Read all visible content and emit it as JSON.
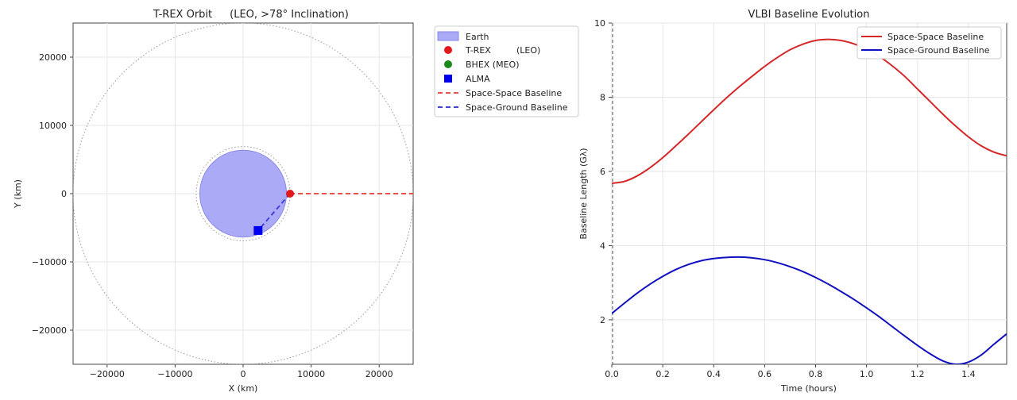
{
  "chart_data": [
    {
      "type": "scatter",
      "title": "T-REX Orbit",
      "subtitle": "(LEO, >78° Inclination)",
      "xlabel": "X (km)",
      "ylabel": "Y (km)",
      "xlim": [
        -25000,
        25000
      ],
      "ylim": [
        -25000,
        25000
      ],
      "xticks": [
        -20000,
        -10000,
        0,
        10000,
        20000
      ],
      "yticks": [
        -20000,
        -10000,
        0,
        10000,
        20000
      ],
      "xtick_labels": [
        "−20000",
        "−10000",
        "0",
        "10000",
        "20000"
      ],
      "ytick_labels": [
        "−20000",
        "−10000",
        "0",
        "10000",
        "20000"
      ],
      "grid": true,
      "earth": {
        "center": [
          0,
          0
        ],
        "radius_km": 6371
      },
      "orbits": [
        {
          "name": "LEO orbit",
          "radius_km": 6900
        },
        {
          "name": "MEO orbit",
          "radius_km": 25000
        }
      ],
      "points": [
        {
          "name": "T-REX",
          "x": 6900,
          "y": 0
        },
        {
          "name": "ALMA",
          "x": 2200,
          "y": -5400
        }
      ],
      "baselines": [
        {
          "name": "Space-Space Baseline",
          "from": [
            6900,
            0
          ],
          "to": [
            25000,
            0
          ]
        },
        {
          "name": "Space-Ground Baseline",
          "from": [
            6900,
            0
          ],
          "to": [
            2200,
            -5400
          ]
        }
      ],
      "legend": {
        "position": "outside-right",
        "entries": [
          {
            "label": "Earth",
            "marker": "patch",
            "color": "#aaaaf7"
          },
          {
            "label": "T-REX",
            "annotation": "(LEO)",
            "marker": "circle",
            "color": "#e31a1c"
          },
          {
            "label": "BHEX (MEO)",
            "marker": "circle",
            "color": "#1a8a1a"
          },
          {
            "label": "ALMA",
            "marker": "square",
            "color": "#0000ee"
          },
          {
            "label": "Space-Space Baseline",
            "marker": "dashed-line",
            "color": "#e8504a"
          },
          {
            "label": "Space-Ground Baseline",
            "marker": "dashed-line",
            "color": "#4242d6"
          }
        ]
      }
    },
    {
      "type": "line",
      "title": "VLBI Baseline Evolution",
      "xlabel": "Time (hours)",
      "ylabel": "Baseline Length (Gλ)",
      "xlim": [
        0,
        1.55
      ],
      "ylim": [
        0.8,
        10
      ],
      "xticks": [
        0.0,
        0.2,
        0.4,
        0.6,
        0.8,
        1.0,
        1.2,
        1.4
      ],
      "yticks": [
        2,
        4,
        6,
        8,
        10
      ],
      "xtick_labels": [
        "0.0",
        "0.2",
        "0.4",
        "0.6",
        "0.8",
        "1.0",
        "1.2",
        "1.4"
      ],
      "ytick_labels": [
        "2",
        "4",
        "6",
        "8",
        "10"
      ],
      "grid": true,
      "legend": {
        "position": "top-right"
      },
      "series": [
        {
          "name": "Space-Space Baseline",
          "color": "#d62728",
          "x": [
            0,
            0.05,
            0.1,
            0.15,
            0.2,
            0.25,
            0.3,
            0.35,
            0.4,
            0.45,
            0.5,
            0.55,
            0.6,
            0.65,
            0.7,
            0.75,
            0.8,
            0.85,
            0.9,
            0.95,
            1.0,
            1.05,
            1.1,
            1.15,
            1.2,
            1.25,
            1.3,
            1.35,
            1.4,
            1.45,
            1.5,
            1.55
          ],
          "values": [
            5.68,
            5.73,
            5.88,
            6.1,
            6.37,
            6.68,
            7.0,
            7.33,
            7.66,
            7.98,
            8.28,
            8.56,
            8.83,
            9.07,
            9.28,
            9.43,
            9.53,
            9.56,
            9.53,
            9.44,
            9.3,
            9.1,
            8.85,
            8.56,
            8.22,
            7.88,
            7.54,
            7.22,
            6.93,
            6.69,
            6.52,
            6.42
          ]
        },
        {
          "name": "Space-Ground Baseline",
          "color": "#1010c0",
          "x": [
            0,
            0.05,
            0.1,
            0.15,
            0.2,
            0.25,
            0.3,
            0.35,
            0.4,
            0.45,
            0.5,
            0.55,
            0.6,
            0.65,
            0.7,
            0.75,
            0.8,
            0.85,
            0.9,
            0.95,
            1.0,
            1.05,
            1.1,
            1.15,
            1.2,
            1.25,
            1.3,
            1.35,
            1.4,
            1.45,
            1.5,
            1.55
          ],
          "values": [
            2.17,
            2.45,
            2.72,
            2.96,
            3.17,
            3.35,
            3.49,
            3.59,
            3.65,
            3.68,
            3.69,
            3.67,
            3.62,
            3.54,
            3.43,
            3.3,
            3.14,
            2.96,
            2.76,
            2.55,
            2.32,
            2.08,
            1.82,
            1.56,
            1.31,
            1.08,
            0.89,
            0.8,
            0.86,
            1.05,
            1.34,
            1.62
          ]
        }
      ]
    }
  ]
}
